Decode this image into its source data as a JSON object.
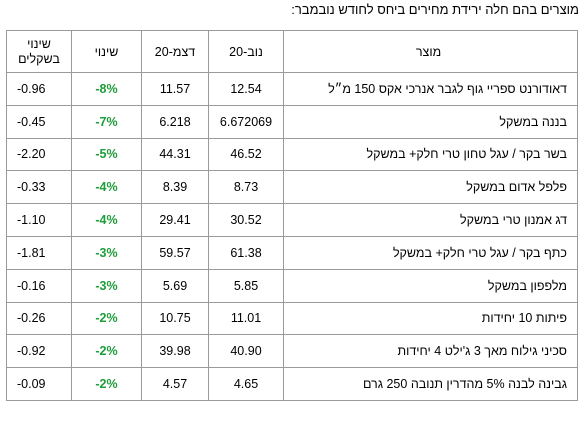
{
  "caption": "מוצרים בהם חלה ירידת מחירים ביחס לחודש נובמבר:",
  "table": {
    "headers": {
      "shekel_change": "שינוי בשקלים",
      "change": "שינוי",
      "dec": "דצמ-20",
      "nov": "נוב-20",
      "product": "מוצר"
    },
    "colors": {
      "change_positive_text": "#1e9e3a",
      "border": "#9a9a9a"
    },
    "rows": [
      {
        "product": "דאודורנט ספריי גוף לגבר אנרכי אקס 150 מ״ל",
        "nov": "12.54",
        "dec": "11.57",
        "change": "-8%",
        "shekel": "-0.96"
      },
      {
        "product": "בננה במשקל",
        "nov": "6.672069",
        "dec": "6.218",
        "change": "-7%",
        "shekel": "-0.45"
      },
      {
        "product": "בשר בקר / עגל טחון טרי חלק+ במשקל",
        "nov": "46.52",
        "dec": "44.31",
        "change": "-5%",
        "shekel": "-2.20"
      },
      {
        "product": "פלפל אדום במשקל",
        "nov": "8.73",
        "dec": "8.39",
        "change": "-4%",
        "shekel": "-0.33"
      },
      {
        "product": "דג אמנון טרי במשקל",
        "nov": "30.52",
        "dec": "29.41",
        "change": "-4%",
        "shekel": "-1.10"
      },
      {
        "product": "כתף בקר / עגל טרי חלק+ במשקל",
        "nov": "61.38",
        "dec": "59.57",
        "change": "-3%",
        "shekel": "-1.81"
      },
      {
        "product": "מלפפון במשקל",
        "nov": "5.85",
        "dec": "5.69",
        "change": "-3%",
        "shekel": "-0.16"
      },
      {
        "product": "פיתות 10 יחידות",
        "nov": "11.01",
        "dec": "10.75",
        "change": "-2%",
        "shekel": "-0.26"
      },
      {
        "product": "סכיני גילוח מאך 3 ג'ילט 4 יחידות",
        "nov": "40.90",
        "dec": "39.98",
        "change": "-2%",
        "shekel": "-0.92"
      },
      {
        "product": "גבינה לבנה 5% מהדרין תנובה 250 גרם",
        "nov": "4.65",
        "dec": "4.57",
        "change": "-2%",
        "shekel": "-0.09"
      }
    ]
  }
}
